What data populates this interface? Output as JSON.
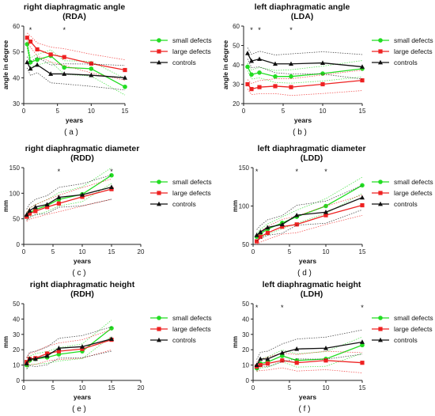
{
  "figure": {
    "legend_labels": [
      "small defects",
      "large defects",
      "controls"
    ],
    "colors": {
      "small": "#22dd22",
      "large": "#ee2222",
      "controls": "#111111"
    }
  },
  "chart_data": [
    {
      "panel": "a",
      "type": "line",
      "title": "right diaphragmatic angle",
      "subtitle": "(RDA)",
      "xlabel": "years",
      "ylabel": "angle in degree",
      "caption": "( a )",
      "xlim": [
        0,
        15
      ],
      "ylim": [
        30,
        60
      ],
      "xticks": [
        0,
        5,
        10,
        15
      ],
      "yticks": [
        30,
        40,
        50,
        60
      ],
      "significance_x": [
        1,
        6
      ],
      "series": [
        {
          "name": "small defects",
          "x": [
            0.5,
            1,
            2,
            4,
            6,
            10,
            15
          ],
          "y": [
            53,
            46,
            47,
            48.5,
            44,
            43.5,
            36.5
          ]
        },
        {
          "name": "large defects",
          "x": [
            0.5,
            1,
            2,
            4,
            6,
            10,
            15
          ],
          "y": [
            55.5,
            54,
            51,
            49,
            48,
            45.5,
            43
          ]
        },
        {
          "name": "controls",
          "x": [
            0.5,
            1,
            2,
            4,
            6,
            10,
            15
          ],
          "y": [
            46,
            43.5,
            45,
            41.5,
            41.5,
            41,
            40
          ]
        }
      ]
    },
    {
      "panel": "b",
      "type": "line",
      "title": "left diaphragmatic angle",
      "subtitle": "(LDA)",
      "xlabel": "years",
      "ylabel": "angle in degree",
      "caption": "( b )",
      "xlim": [
        0,
        15
      ],
      "ylim": [
        20,
        60
      ],
      "xticks": [
        0,
        5,
        10,
        15
      ],
      "yticks": [
        20,
        30,
        40,
        50,
        60
      ],
      "significance_x": [
        1,
        2,
        6
      ],
      "series": [
        {
          "name": "small defects",
          "x": [
            0.5,
            1,
            2,
            4,
            6,
            10,
            15
          ],
          "y": [
            39,
            35,
            36,
            34,
            34,
            35.5,
            38
          ]
        },
        {
          "name": "large defects",
          "x": [
            0.5,
            1,
            2,
            4,
            6,
            10,
            15
          ],
          "y": [
            30,
            27.5,
            28.5,
            29,
            28.5,
            30,
            32
          ]
        },
        {
          "name": "controls",
          "x": [
            0.5,
            1,
            2,
            4,
            6,
            10,
            15
          ],
          "y": [
            46,
            42,
            43,
            40.5,
            40.5,
            41,
            39
          ]
        }
      ]
    },
    {
      "panel": "c",
      "type": "line",
      "title": "right diaphragmatic diameter",
      "subtitle": "(RDD)",
      "xlabel": "years",
      "ylabel": "mm",
      "caption": "( c )",
      "xlim": [
        0,
        20
      ],
      "ylim": [
        0,
        150
      ],
      "xticks": [
        0,
        5,
        10,
        15,
        20
      ],
      "yticks": [
        0,
        50,
        100,
        150
      ],
      "significance_x": [
        6,
        15
      ],
      "series": [
        {
          "name": "small defects",
          "x": [
            0.5,
            1,
            2,
            4,
            6,
            10,
            15
          ],
          "y": [
            55,
            62,
            68,
            76,
            88,
            98,
            135
          ]
        },
        {
          "name": "large defects",
          "x": [
            0.5,
            1,
            2,
            4,
            6,
            10,
            15
          ],
          "y": [
            54,
            60,
            65,
            73,
            80,
            93,
            108
          ]
        },
        {
          "name": "controls",
          "x": [
            0.5,
            1,
            2,
            4,
            6,
            10,
            15
          ],
          "y": [
            58,
            66,
            73,
            78,
            92,
            97,
            112
          ]
        }
      ]
    },
    {
      "panel": "d",
      "type": "line",
      "title": "left diaphragmatic diameter",
      "subtitle": "(LDD)",
      "xlabel": "years",
      "ylabel": "mm",
      "caption": "( d )",
      "xlim": [
        0,
        15
      ],
      "ylim": [
        50,
        150
      ],
      "xticks": [
        0,
        5,
        10,
        15
      ],
      "yticks": [
        50,
        100,
        150
      ],
      "significance_x": [
        0.5,
        6,
        10
      ],
      "series": [
        {
          "name": "small defects",
          "x": [
            0.5,
            1,
            2,
            4,
            6,
            10,
            15
          ],
          "y": [
            60,
            64,
            70,
            78,
            86,
            100,
            127
          ]
        },
        {
          "name": "large defects",
          "x": [
            0.5,
            1,
            2,
            4,
            6,
            10,
            15
          ],
          "y": [
            54,
            60,
            65,
            73,
            76,
            88,
            101
          ]
        },
        {
          "name": "controls",
          "x": [
            0.5,
            1,
            2,
            4,
            6,
            10,
            15
          ],
          "y": [
            62,
            66,
            72,
            76,
            88,
            92,
            111
          ]
        }
      ]
    },
    {
      "panel": "e",
      "type": "line",
      "title": "right diaphragmatic height",
      "subtitle": "(RDH)",
      "xlabel": "years",
      "ylabel": "mm",
      "caption": "( e )",
      "xlim": [
        0,
        20
      ],
      "ylim": [
        0,
        50
      ],
      "xticks": [
        0,
        5,
        10,
        15,
        20
      ],
      "yticks": [
        0,
        10,
        20,
        30,
        40,
        50
      ],
      "significance_x": [],
      "series": [
        {
          "name": "small defects",
          "x": [
            0.5,
            1,
            2,
            4,
            6,
            10,
            15
          ],
          "y": [
            10,
            13,
            14,
            15,
            17,
            19,
            34
          ]
        },
        {
          "name": "large defects",
          "x": [
            0.5,
            1,
            2,
            4,
            6,
            10,
            15
          ],
          "y": [
            12,
            14,
            14.5,
            17.5,
            19,
            20.5,
            26.5
          ]
        },
        {
          "name": "controls",
          "x": [
            0.5,
            1,
            2,
            4,
            6,
            10,
            15
          ],
          "y": [
            11,
            14,
            14,
            16,
            21,
            22,
            27
          ]
        }
      ]
    },
    {
      "panel": "f",
      "type": "line",
      "title": "left diaphragmatic height",
      "subtitle": "(LDH)",
      "xlabel": "years",
      "ylabel": "mm",
      "caption": "( f )",
      "xlim": [
        0,
        15
      ],
      "ylim": [
        0,
        50
      ],
      "xticks": [
        0,
        5,
        10,
        15
      ],
      "yticks": [
        0,
        10,
        20,
        30,
        40,
        50
      ],
      "significance_x": [
        0.5,
        4,
        15
      ],
      "series": [
        {
          "name": "small defects",
          "x": [
            0.5,
            1,
            2,
            4,
            6,
            10,
            15
          ],
          "y": [
            8,
            11,
            12,
            16,
            13,
            14,
            23
          ]
        },
        {
          "name": "large defects",
          "x": [
            0.5,
            1,
            2,
            4,
            6,
            10,
            15
          ],
          "y": [
            9,
            10,
            11,
            13,
            11.5,
            13,
            11.5
          ]
        },
        {
          "name": "controls",
          "x": [
            0.5,
            1,
            2,
            4,
            6,
            10,
            15
          ],
          "y": [
            10,
            14,
            14,
            18,
            20.5,
            21,
            25
          ]
        }
      ]
    }
  ]
}
